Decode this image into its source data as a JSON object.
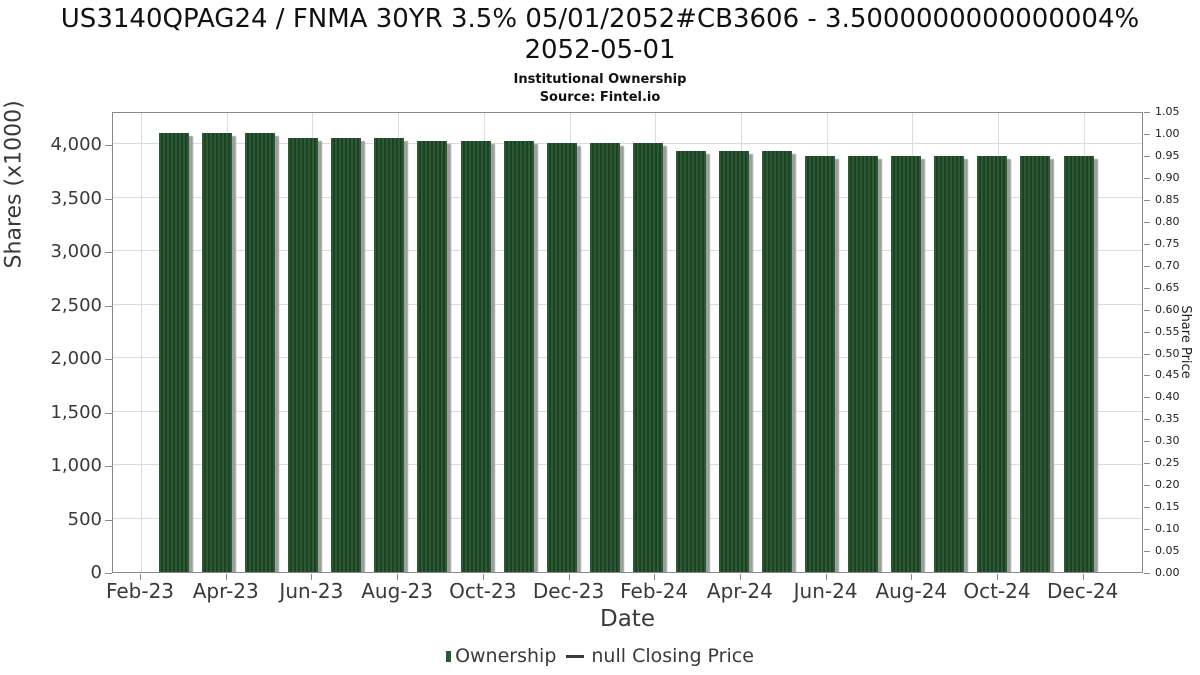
{
  "header": {
    "title_line1": "US3140QPAG24 / FNMA 30YR 3.5% 05/01/2052#CB3606 - 3.5000000000000004%",
    "title_line2": "2052-05-01",
    "subtitle": "Institutional Ownership",
    "source": "Source: Fintel.io"
  },
  "chart_data": {
    "type": "bar",
    "title": "US3140QPAG24 / FNMA 30YR 3.5% 05/01/2052#CB3606 - 3.5000000000000004% 2052-05-01",
    "subtitle": "Institutional Ownership",
    "source": "Source: Fintel.io",
    "xlabel": "Date",
    "ylabel_left": "Shares (x1000)",
    "ylabel_right": "Share Price",
    "grid": true,
    "legend_position": "bottom",
    "ylim_left": [
      0,
      4300
    ],
    "ylim_right": [
      0,
      1.05
    ],
    "categories": [
      "Mar-23",
      "Apr-23",
      "May-23",
      "Jun-23",
      "Jul-23",
      "Aug-23",
      "Sep-23",
      "Oct-23",
      "Nov-23",
      "Dec-23",
      "Jan-24",
      "Feb-24",
      "Mar-24",
      "Apr-24",
      "May-24",
      "Jun-24",
      "Jul-24",
      "Aug-24",
      "Sep-24",
      "Oct-24",
      "Nov-24",
      "Dec-24"
    ],
    "series": [
      {
        "name": "Ownership",
        "values": [
          4100,
          4100,
          4100,
          4060,
          4060,
          4060,
          4030,
          4030,
          4030,
          4010,
          4010,
          4010,
          3940,
          3940,
          3940,
          3890,
          3890,
          3890,
          3890,
          3890,
          3890,
          3890
        ]
      },
      {
        "name": "null Closing Price",
        "values": []
      }
    ],
    "x_tick_labels": [
      "Feb-23",
      "Apr-23",
      "Jun-23",
      "Aug-23",
      "Oct-23",
      "Dec-23",
      "Feb-24",
      "Apr-24",
      "Jun-24",
      "Aug-24",
      "Oct-24",
      "Dec-24"
    ],
    "y_left_tick_labels": [
      "0",
      "500",
      "1,000",
      "1,500",
      "2,000",
      "2,500",
      "3,000",
      "3,500",
      "4,000"
    ],
    "y_right_tick_labels": [
      "0.00",
      "0.05",
      "0.10",
      "0.15",
      "0.20",
      "0.25",
      "0.30",
      "0.35",
      "0.40",
      "0.45",
      "0.50",
      "0.55",
      "0.60",
      "0.65",
      "0.70",
      "0.75",
      "0.80",
      "0.85",
      "0.90",
      "0.95",
      "1.00",
      "1.05"
    ]
  },
  "legend": {
    "ownership_label": "Ownership",
    "price_label": "null Closing Price"
  },
  "colors": {
    "bar_green": "#2b5a33",
    "bar_green_dark": "#1d4125",
    "bar_shadow": "#9e9e9e",
    "gridline": "#dcdcdc",
    "spine": "#898989",
    "tick_text": "#3a3a3a",
    "title_text": "#111111"
  }
}
